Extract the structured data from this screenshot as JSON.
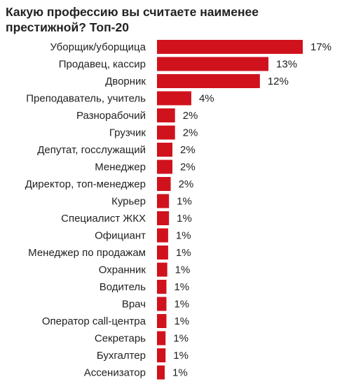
{
  "title": "Какую профессию вы считаете наименее престижной? Топ-20",
  "chart_data": {
    "type": "bar",
    "orientation": "horizontal",
    "title": "Какую профессию вы считаете наименее престижной? Топ-20",
    "xlabel": "",
    "ylabel": "",
    "xlim": [
      0,
      17
    ],
    "grid": false,
    "bar_color": "#D0121D",
    "categories": [
      "Уборщик/уборщица",
      "Продавец, кассир",
      "Дворник",
      "Преподаватель, учитель",
      "Разнорабочий",
      "Грузчик",
      "Депутат, госслужащий",
      "Менеджер",
      "Директор, топ-менеджер",
      "Курьер",
      "Специалист ЖКХ",
      "Официант",
      "Менеджер по продажам",
      "Охранник",
      "Водитель",
      "Врач",
      "Оператор call-центра",
      "Секретарь",
      "Бухгалтер",
      "Ассенизатор"
    ],
    "values": [
      17,
      13,
      12,
      4,
      2,
      2,
      2,
      2,
      2,
      1,
      1,
      1,
      1,
      1,
      1,
      1,
      1,
      1,
      1,
      1
    ],
    "bar_values": [
      17,
      13,
      12,
      4,
      2.1,
      2.1,
      1.8,
      1.8,
      1.6,
      1.4,
      1.4,
      1.3,
      1.3,
      1.2,
      1.1,
      1.1,
      1.1,
      1.0,
      1.0,
      0.9
    ],
    "labels": [
      "17%",
      "13%",
      "12%",
      "4%",
      "2%",
      "2%",
      "2%",
      "2%",
      "2%",
      "1%",
      "1%",
      "1%",
      "1%",
      "1%",
      "1%",
      "1%",
      "1%",
      "1%",
      "1%",
      "1%"
    ]
  }
}
